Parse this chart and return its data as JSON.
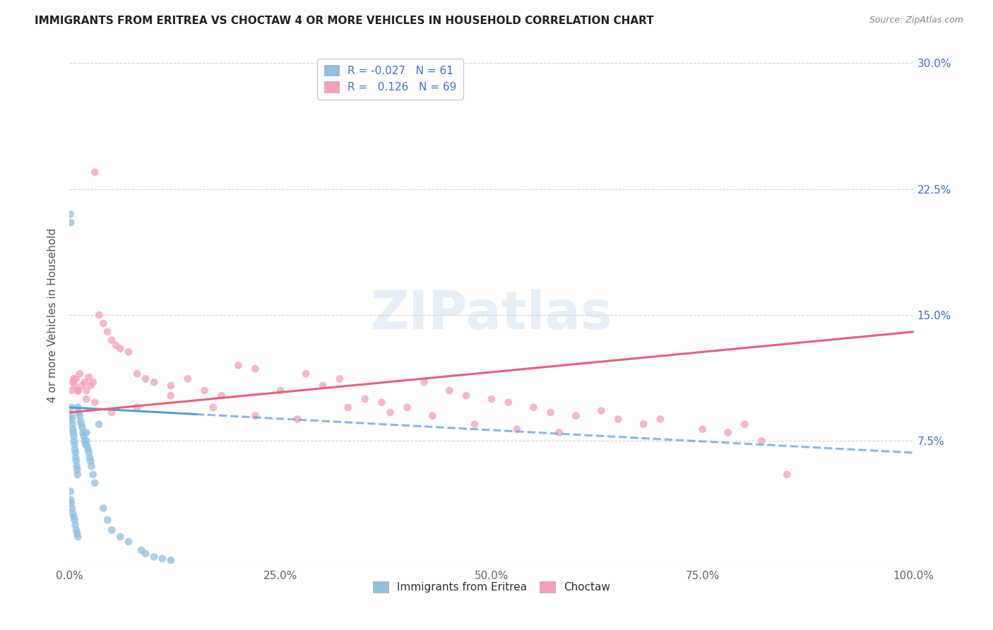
{
  "title": "IMMIGRANTS FROM ERITREA VS CHOCTAW 4 OR MORE VEHICLES IN HOUSEHOLD CORRELATION CHART",
  "source": "Source: ZipAtlas.com",
  "ylabel": "4 or more Vehicles in Household",
  "watermark": "ZIPatlas",
  "legend_R_eritrea": "-0.027",
  "legend_N_eritrea": "61",
  "legend_R_choctaw": "0.126",
  "legend_N_choctaw": "69",
  "color_eritrea": "#92C0E0",
  "color_choctaw": "#F4A0B8",
  "color_eritrea_line": "#5B9BD5",
  "color_choctaw_line": "#E8607A",
  "background_color": "#ffffff",
  "grid_color": "#cccccc",
  "xlim": [
    0,
    100
  ],
  "ylim": [
    0,
    30
  ],
  "eritrea_x": [
    0.1,
    0.15,
    0.2,
    0.25,
    0.3,
    0.35,
    0.4,
    0.45,
    0.5,
    0.55,
    0.6,
    0.65,
    0.7,
    0.75,
    0.8,
    0.85,
    0.9,
    0.95,
    1.0,
    1.0,
    1.1,
    1.2,
    1.3,
    1.4,
    1.5,
    1.6,
    1.7,
    1.8,
    1.9,
    2.0,
    2.0,
    2.1,
    2.2,
    2.3,
    2.4,
    2.5,
    2.6,
    2.8,
    3.0,
    3.5,
    4.0,
    4.5,
    5.0,
    6.0,
    7.0,
    8.5,
    9.0,
    10.0,
    11.0,
    12.0,
    0.1,
    0.15,
    0.2,
    0.3,
    0.4,
    0.5,
    0.6,
    0.7,
    0.8,
    0.9,
    1.0
  ],
  "eritrea_y": [
    21.0,
    20.5,
    9.5,
    9.0,
    8.8,
    8.5,
    8.2,
    8.0,
    7.8,
    7.5,
    7.3,
    7.0,
    6.8,
    6.5,
    6.3,
    6.0,
    5.8,
    5.5,
    10.5,
    9.5,
    9.2,
    9.0,
    8.7,
    8.5,
    8.3,
    8.0,
    7.8,
    7.5,
    7.3,
    8.0,
    7.5,
    7.2,
    7.0,
    6.8,
    6.5,
    6.3,
    6.0,
    5.5,
    5.0,
    8.5,
    3.5,
    2.8,
    2.2,
    1.8,
    1.5,
    1.0,
    0.8,
    0.6,
    0.5,
    0.4,
    4.5,
    4.0,
    3.8,
    3.5,
    3.2,
    3.0,
    2.8,
    2.5,
    2.2,
    2.0,
    1.8
  ],
  "choctaw_x": [
    0.2,
    0.4,
    0.6,
    0.8,
    1.0,
    1.2,
    1.5,
    1.8,
    2.0,
    2.3,
    2.5,
    2.8,
    3.0,
    3.5,
    4.0,
    4.5,
    5.0,
    5.5,
    6.0,
    7.0,
    8.0,
    9.0,
    10.0,
    12.0,
    14.0,
    16.0,
    18.0,
    20.0,
    22.0,
    25.0,
    28.0,
    30.0,
    32.0,
    35.0,
    37.0,
    40.0,
    42.0,
    45.0,
    47.0,
    50.0,
    52.0,
    55.0,
    57.0,
    60.0,
    63.0,
    65.0,
    68.0,
    70.0,
    75.0,
    78.0,
    80.0,
    82.0,
    85.0,
    0.5,
    1.0,
    2.0,
    3.0,
    5.0,
    8.0,
    12.0,
    17.0,
    22.0,
    27.0,
    33.0,
    38.0,
    43.0,
    48.0,
    53.0,
    58.0
  ],
  "choctaw_y": [
    10.5,
    11.0,
    10.8,
    11.2,
    10.5,
    11.5,
    10.8,
    11.0,
    10.5,
    11.3,
    10.8,
    11.0,
    23.5,
    15.0,
    14.5,
    14.0,
    13.5,
    13.2,
    13.0,
    12.8,
    11.5,
    11.2,
    11.0,
    10.8,
    11.2,
    10.5,
    10.2,
    12.0,
    11.8,
    10.5,
    11.5,
    10.8,
    11.2,
    10.0,
    9.8,
    9.5,
    11.0,
    10.5,
    10.2,
    10.0,
    9.8,
    9.5,
    9.2,
    9.0,
    9.3,
    8.8,
    8.5,
    8.8,
    8.2,
    8.0,
    8.5,
    7.5,
    5.5,
    11.2,
    10.5,
    10.0,
    9.8,
    9.2,
    9.5,
    10.2,
    9.5,
    9.0,
    8.8,
    9.5,
    9.2,
    9.0,
    8.5,
    8.2,
    8.0
  ],
  "e_line_x0": 0,
  "e_line_x1": 100,
  "e_line_y0": 9.5,
  "e_line_y1": 6.8,
  "e_solid_end": 15,
  "c_line_x0": 0,
  "c_line_x1": 100,
  "c_line_y0": 9.2,
  "c_line_y1": 14.0
}
